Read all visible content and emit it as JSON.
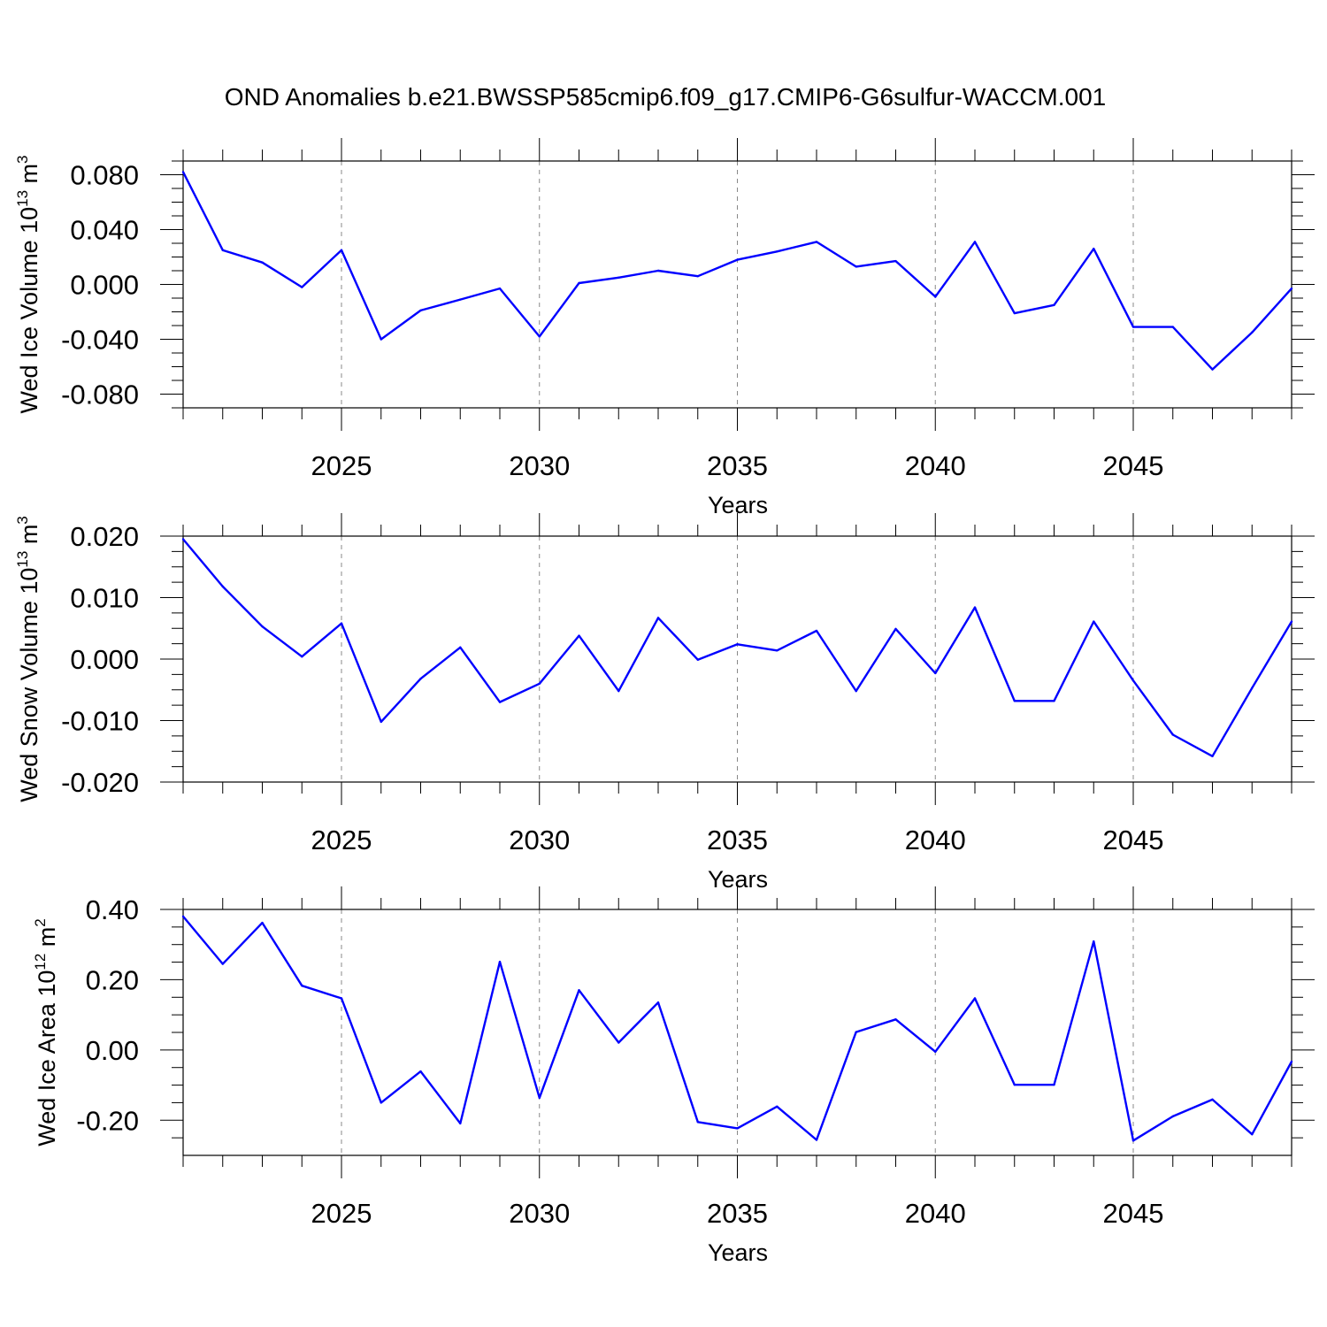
{
  "title": "OND Anomalies b.e21.BWSSP585cmip6.f09_g17.CMIP6-G6sulfur-WACCM.001",
  "chart_data": [
    {
      "type": "line",
      "xlabel": "Years",
      "ylabel": {
        "main": "Wed Ice Volume 10",
        "exp": "13",
        "unit": " m",
        "unit_exp": "3"
      },
      "xlim": [
        2021,
        2049
      ],
      "ylim": [
        -0.09,
        0.09
      ],
      "xticks": [
        "2025",
        "2030",
        "2035",
        "2040",
        "2045"
      ],
      "yticks": [
        "0.080",
        "0.040",
        "0.000",
        "-0.040",
        "-0.080"
      ],
      "grid": "vertical dashed at major x ticks",
      "line_color": "#0000ff",
      "x": [
        2021,
        2022,
        2023,
        2024,
        2025,
        2026,
        2027,
        2028,
        2029,
        2030,
        2031,
        2032,
        2033,
        2034,
        2035,
        2036,
        2037,
        2038,
        2039,
        2040,
        2041,
        2042,
        2043,
        2044,
        2045,
        2046,
        2047,
        2048,
        2049
      ],
      "values": [
        0.082,
        0.025,
        0.016,
        -0.002,
        0.025,
        -0.04,
        -0.019,
        -0.011,
        -0.003,
        -0.038,
        0.001,
        0.005,
        0.01,
        0.006,
        0.018,
        0.024,
        0.031,
        0.013,
        0.017,
        -0.009,
        0.031,
        -0.021,
        -0.015,
        0.026,
        -0.031,
        -0.031,
        -0.062,
        -0.035,
        -0.003
      ]
    },
    {
      "type": "line",
      "xlabel": "Years",
      "ylabel": {
        "main": "Wed Snow Volume 10",
        "exp": "13",
        "unit": " m",
        "unit_exp": "3"
      },
      "xlim": [
        2021,
        2049
      ],
      "ylim": [
        -0.02,
        0.02
      ],
      "xticks": [
        "2025",
        "2030",
        "2035",
        "2040",
        "2045"
      ],
      "yticks": [
        "0.020",
        "0.010",
        "0.000",
        "-0.010",
        "-0.020"
      ],
      "grid": "vertical dashed at major x ticks",
      "line_color": "#0000ff",
      "x": [
        2021,
        2022,
        2023,
        2024,
        2025,
        2026,
        2027,
        2028,
        2029,
        2030,
        2031,
        2032,
        2033,
        2034,
        2035,
        2036,
        2037,
        2038,
        2039,
        2040,
        2041,
        2042,
        2043,
        2044,
        2045,
        2046,
        2047,
        2048,
        2049
      ],
      "values": [
        0.0195,
        0.0118,
        0.0053,
        0.0004,
        0.0058,
        -0.0102,
        -0.0032,
        0.0019,
        -0.007,
        -0.004,
        0.0038,
        -0.0052,
        0.0067,
        -0.0001,
        0.0024,
        0.0014,
        0.0046,
        -0.0052,
        0.0049,
        -0.0023,
        0.0084,
        -0.0068,
        -0.0068,
        0.0061,
        -0.0035,
        -0.0123,
        -0.0158,
        -0.0047,
        0.0061
      ]
    },
    {
      "type": "line",
      "xlabel": "Years",
      "ylabel": {
        "main": "Wed Ice Area 10",
        "exp": "12",
        "unit": " m",
        "unit_exp": "2"
      },
      "xlim": [
        2021,
        2049
      ],
      "ylim": [
        -0.3,
        0.4
      ],
      "xticks": [
        "2025",
        "2030",
        "2035",
        "2040",
        "2045"
      ],
      "yticks": [
        "0.40",
        "0.20",
        "0.00",
        "-0.20"
      ],
      "grid": "vertical dashed at major x ticks",
      "line_color": "#0000ff",
      "x": [
        2021,
        2022,
        2023,
        2024,
        2025,
        2026,
        2027,
        2028,
        2029,
        2030,
        2031,
        2032,
        2033,
        2034,
        2035,
        2036,
        2037,
        2038,
        2039,
        2040,
        2041,
        2042,
        2043,
        2044,
        2045,
        2046,
        2047,
        2048,
        2049
      ],
      "values": [
        0.38,
        0.245,
        0.362,
        0.183,
        0.147,
        -0.15,
        -0.061,
        -0.209,
        0.251,
        -0.136,
        0.17,
        0.021,
        0.135,
        -0.205,
        -0.223,
        -0.161,
        -0.256,
        0.051,
        0.087,
        -0.005,
        0.147,
        -0.099,
        -0.099,
        0.309,
        -0.258,
        -0.189,
        -0.141,
        -0.24,
        -0.033
      ]
    }
  ]
}
